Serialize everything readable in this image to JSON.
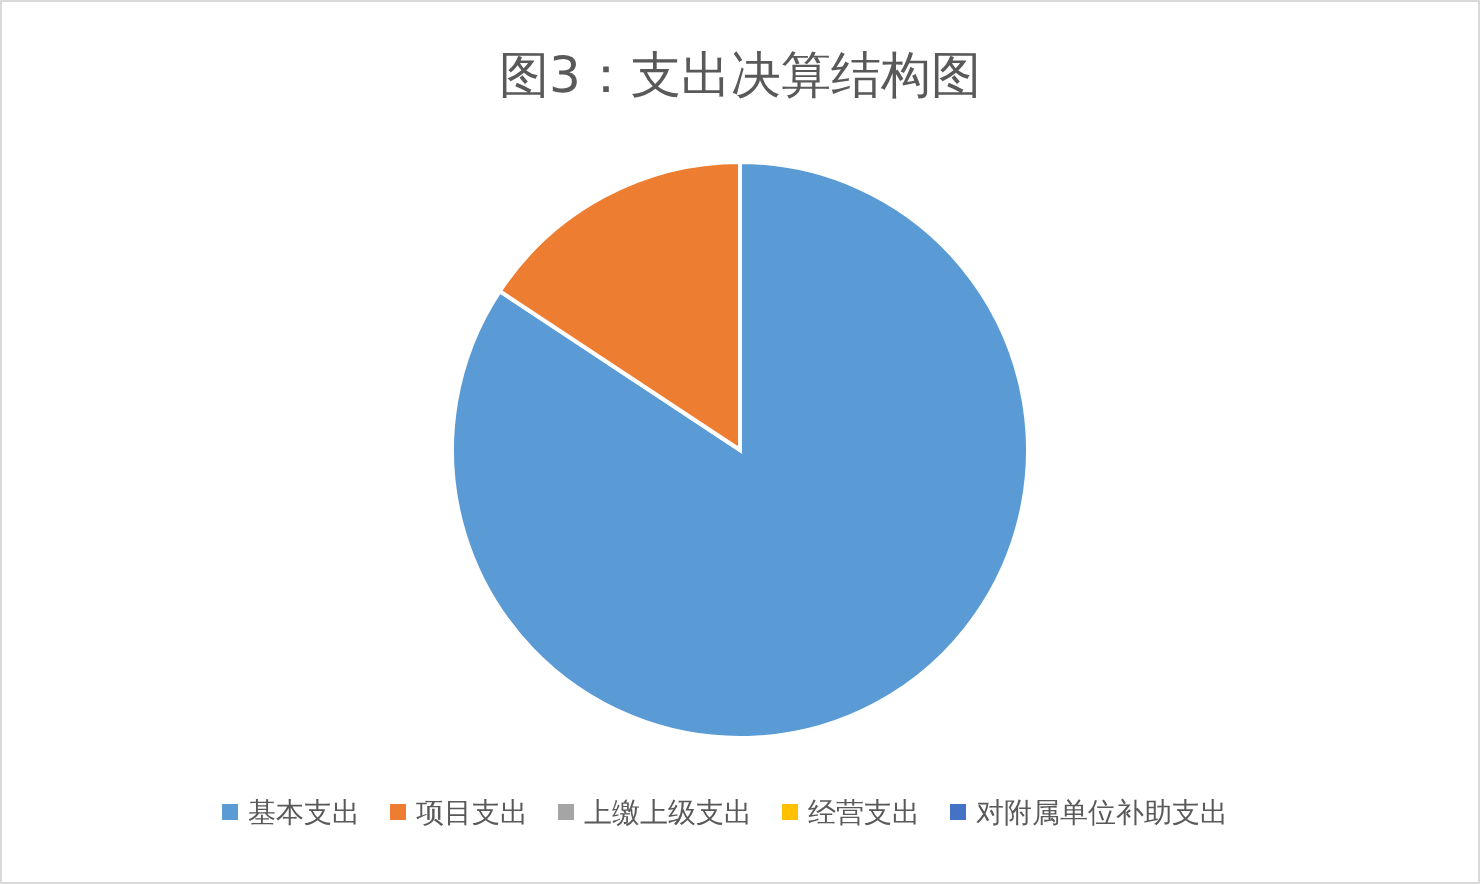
{
  "chart_data": {
    "type": "pie",
    "title": "图3：支出决算结构图",
    "categories": [
      "基本支出",
      "项目支出",
      "上缴上级支出",
      "经营支出",
      "对附属单位补助支出"
    ],
    "values": [
      84.3,
      15.7,
      0,
      0,
      0
    ],
    "colors": [
      "#5b9bd5",
      "#ed7d31",
      "#a5a5a5",
      "#ffc000",
      "#4472c4"
    ],
    "legend": "bottom"
  }
}
